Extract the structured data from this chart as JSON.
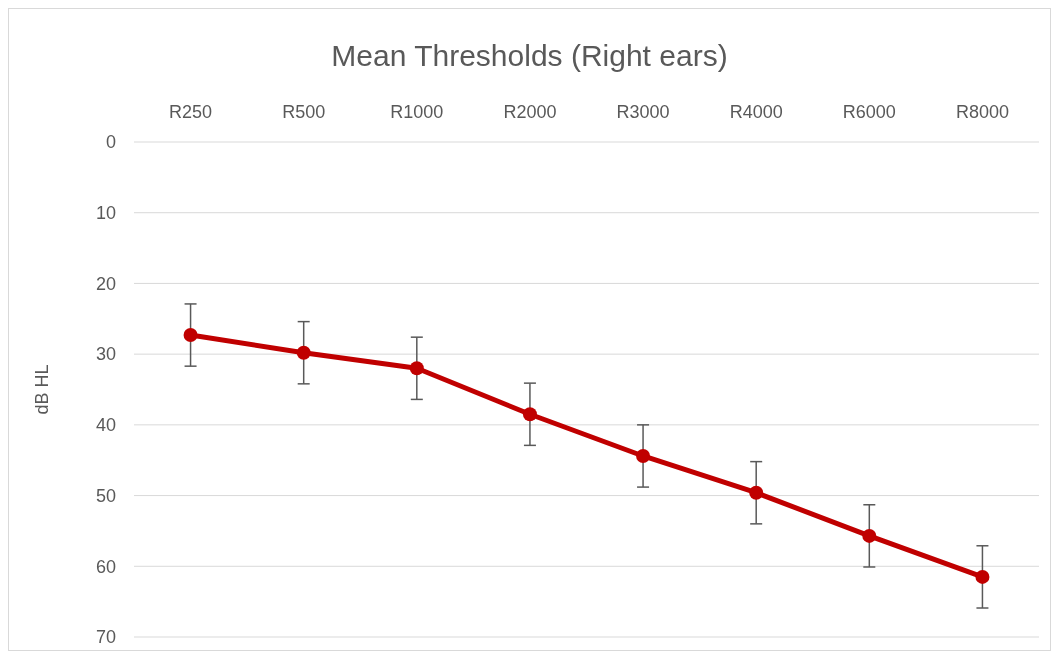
{
  "chart_data": {
    "type": "line",
    "title": "Mean Thresholds (Right ears)",
    "ylabel": "dB HL",
    "categories": [
      "R250",
      "R500",
      "R1000",
      "R2000",
      "R3000",
      "R4000",
      "R6000",
      "R8000"
    ],
    "series": [
      {
        "color": "#c00000",
        "values": [
          27.3,
          29.8,
          32.0,
          38.5,
          44.4,
          49.6,
          55.7,
          61.5
        ],
        "errors": [
          4.4,
          4.4,
          4.4,
          4.4,
          4.4,
          4.4,
          4.4,
          4.4
        ]
      }
    ],
    "ylim": [
      70,
      0
    ],
    "yticks": [
      0,
      10,
      20,
      30,
      40,
      50,
      60,
      70
    ],
    "grid": "y",
    "marker": "circle",
    "line_style": "solid"
  }
}
